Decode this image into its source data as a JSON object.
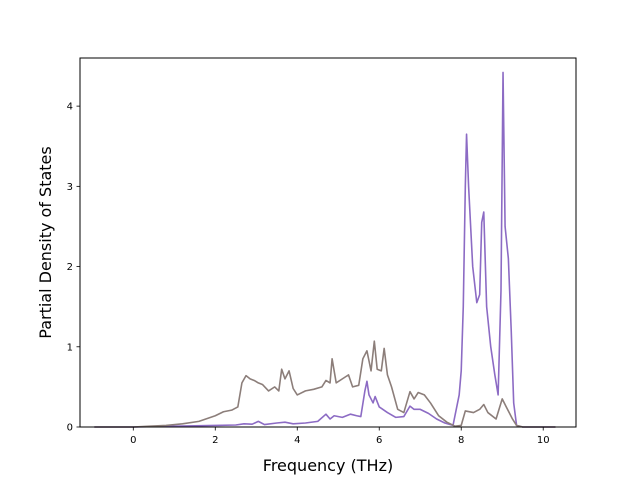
{
  "chart_data": {
    "type": "line",
    "title": "",
    "xlabel": "Frequency (THz)",
    "ylabel": "Partial Density of States",
    "xlim": [
      -1.3,
      10.8
    ],
    "ylim": [
      0,
      4.6
    ],
    "xticks": [
      0,
      2,
      4,
      6,
      8,
      10
    ],
    "yticks": [
      0,
      1,
      2,
      3,
      4
    ],
    "grid": false,
    "legend": "none",
    "series": [
      {
        "color": "#8c6bc4",
        "points": [
          [
            -0.95,
            0
          ],
          [
            0,
            0
          ],
          [
            0.5,
            0.005
          ],
          [
            1.0,
            0.01
          ],
          [
            1.5,
            0.015
          ],
          [
            2.0,
            0.02
          ],
          [
            2.5,
            0.025
          ],
          [
            2.7,
            0.04
          ],
          [
            2.9,
            0.035
          ],
          [
            3.05,
            0.07
          ],
          [
            3.2,
            0.03
          ],
          [
            3.5,
            0.05
          ],
          [
            3.7,
            0.06
          ],
          [
            3.9,
            0.04
          ],
          [
            4.2,
            0.05
          ],
          [
            4.5,
            0.07
          ],
          [
            4.7,
            0.16
          ],
          [
            4.8,
            0.1
          ],
          [
            4.9,
            0.14
          ],
          [
            5.1,
            0.12
          ],
          [
            5.3,
            0.16
          ],
          [
            5.45,
            0.14
          ],
          [
            5.55,
            0.13
          ],
          [
            5.65,
            0.45
          ],
          [
            5.7,
            0.57
          ],
          [
            5.75,
            0.4
          ],
          [
            5.85,
            0.3
          ],
          [
            5.9,
            0.38
          ],
          [
            6.0,
            0.25
          ],
          [
            6.2,
            0.18
          ],
          [
            6.4,
            0.12
          ],
          [
            6.6,
            0.13
          ],
          [
            6.75,
            0.26
          ],
          [
            6.85,
            0.22
          ],
          [
            7.0,
            0.22
          ],
          [
            7.2,
            0.17
          ],
          [
            7.4,
            0.1
          ],
          [
            7.6,
            0.05
          ],
          [
            7.8,
            0.02
          ],
          [
            7.95,
            0.4
          ],
          [
            8.0,
            0.7
          ],
          [
            8.05,
            1.5
          ],
          [
            8.1,
            3.0
          ],
          [
            8.13,
            3.65
          ],
          [
            8.18,
            3.0
          ],
          [
            8.28,
            2.0
          ],
          [
            8.38,
            1.55
          ],
          [
            8.45,
            1.65
          ],
          [
            8.5,
            2.55
          ],
          [
            8.55,
            2.68
          ],
          [
            8.62,
            1.5
          ],
          [
            8.72,
            1.0
          ],
          [
            8.82,
            0.65
          ],
          [
            8.9,
            0.4
          ],
          [
            8.97,
            1.7
          ],
          [
            9.02,
            4.42
          ],
          [
            9.07,
            2.5
          ],
          [
            9.15,
            2.1
          ],
          [
            9.22,
            1.2
          ],
          [
            9.28,
            0.3
          ],
          [
            9.35,
            0.02
          ],
          [
            9.5,
            0
          ],
          [
            10.3,
            0
          ]
        ]
      },
      {
        "color": "#8c7e7a",
        "points": [
          [
            -0.95,
            0
          ],
          [
            0,
            0
          ],
          [
            0.4,
            0.01
          ],
          [
            0.8,
            0.02
          ],
          [
            1.2,
            0.04
          ],
          [
            1.6,
            0.07
          ],
          [
            2.0,
            0.14
          ],
          [
            2.2,
            0.19
          ],
          [
            2.4,
            0.21
          ],
          [
            2.55,
            0.25
          ],
          [
            2.65,
            0.55
          ],
          [
            2.75,
            0.64
          ],
          [
            2.85,
            0.6
          ],
          [
            2.95,
            0.58
          ],
          [
            3.05,
            0.55
          ],
          [
            3.15,
            0.53
          ],
          [
            3.3,
            0.45
          ],
          [
            3.45,
            0.5
          ],
          [
            3.55,
            0.45
          ],
          [
            3.62,
            0.72
          ],
          [
            3.7,
            0.6
          ],
          [
            3.8,
            0.7
          ],
          [
            3.9,
            0.48
          ],
          [
            4.0,
            0.4
          ],
          [
            4.2,
            0.45
          ],
          [
            4.4,
            0.47
          ],
          [
            4.6,
            0.5
          ],
          [
            4.7,
            0.58
          ],
          [
            4.8,
            0.55
          ],
          [
            4.85,
            0.85
          ],
          [
            4.95,
            0.55
          ],
          [
            5.1,
            0.6
          ],
          [
            5.25,
            0.65
          ],
          [
            5.35,
            0.5
          ],
          [
            5.5,
            0.52
          ],
          [
            5.6,
            0.85
          ],
          [
            5.7,
            0.95
          ],
          [
            5.8,
            0.7
          ],
          [
            5.88,
            1.07
          ],
          [
            5.95,
            0.72
          ],
          [
            6.05,
            0.7
          ],
          [
            6.12,
            0.98
          ],
          [
            6.2,
            0.65
          ],
          [
            6.3,
            0.5
          ],
          [
            6.45,
            0.22
          ],
          [
            6.6,
            0.18
          ],
          [
            6.75,
            0.44
          ],
          [
            6.85,
            0.35
          ],
          [
            6.95,
            0.43
          ],
          [
            7.1,
            0.4
          ],
          [
            7.25,
            0.3
          ],
          [
            7.45,
            0.14
          ],
          [
            7.65,
            0.06
          ],
          [
            7.85,
            0.01
          ],
          [
            8.0,
            0.02
          ],
          [
            8.1,
            0.2
          ],
          [
            8.3,
            0.18
          ],
          [
            8.45,
            0.22
          ],
          [
            8.55,
            0.28
          ],
          [
            8.65,
            0.18
          ],
          [
            8.85,
            0.1
          ],
          [
            9.0,
            0.35
          ],
          [
            9.1,
            0.25
          ],
          [
            9.25,
            0.1
          ],
          [
            9.35,
            0.02
          ],
          [
            9.5,
            0
          ],
          [
            10.3,
            0
          ]
        ]
      }
    ]
  }
}
